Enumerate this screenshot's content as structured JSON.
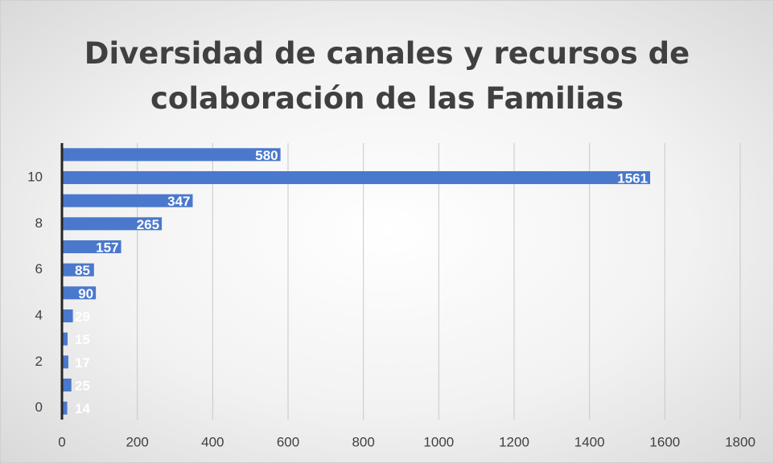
{
  "chart_data": {
    "type": "bar",
    "orientation": "horizontal",
    "title": "Diversidad de canales y recursos de colaboración de las Familias",
    "categories": [
      0,
      null,
      2,
      null,
      4,
      null,
      6,
      null,
      8,
      null,
      10,
      null
    ],
    "values": [
      14,
      25,
      17,
      15,
      29,
      90,
      85,
      157,
      265,
      347,
      1561,
      580
    ],
    "color": "#4a78cc",
    "xlim": [
      0,
      1800
    ],
    "xticks": [
      0,
      200,
      400,
      600,
      800,
      1000,
      1200,
      1400,
      1600,
      1800
    ],
    "grid": true
  }
}
